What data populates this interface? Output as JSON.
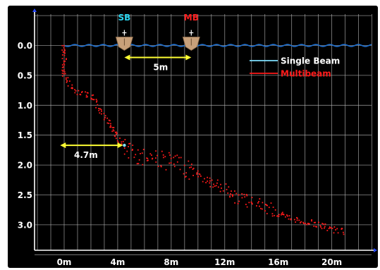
{
  "chart_data": {
    "type": "scatter",
    "x_ticks": [
      "0m",
      "4m",
      "8m",
      "12m",
      "16m",
      "20m"
    ],
    "y_ticks": [
      "0.0",
      "0.5",
      "1.0",
      "1.5",
      "2.0",
      "2.5",
      "3.0"
    ],
    "xlim": [
      -2,
      23
    ],
    "ylim": [
      3.4,
      -0.4
    ],
    "grid": true,
    "water_surface_color": "#1e6fd0",
    "legend": {
      "placement": "top-right",
      "entries": [
        {
          "label": "Single Beam",
          "color": "#7fe0ff"
        },
        {
          "label": "Multibeam",
          "color": "#ff1a1a"
        }
      ]
    },
    "boats": [
      {
        "label": "SB",
        "x": 4.5,
        "label_color": "#2ad6f0"
      },
      {
        "label": "MB",
        "x": 9.5,
        "label_color": "#ff2020"
      }
    ],
    "annotations": [
      {
        "text": "5m",
        "color": "#ffff33",
        "arrow_from": [
          4.5,
          0.2
        ],
        "arrow_to": [
          9.5,
          0.2
        ]
      },
      {
        "text": "4.7m",
        "color": "#ffff33",
        "arrow_from": [
          -0.3,
          1.67
        ],
        "arrow_to": [
          4.4,
          1.67
        ]
      }
    ],
    "series": [
      {
        "name": "Multibeam",
        "color": "#ff1a1a",
        "profile": [
          [
            0.0,
            0.0
          ],
          [
            0.0,
            0.5
          ],
          [
            0.5,
            0.7
          ],
          [
            1.2,
            0.78
          ],
          [
            2.0,
            0.85
          ],
          [
            2.5,
            1.0
          ],
          [
            3.0,
            1.15
          ],
          [
            3.5,
            1.35
          ],
          [
            4.0,
            1.55
          ],
          [
            4.5,
            1.7
          ],
          [
            5.0,
            1.82
          ],
          [
            6.0,
            1.85
          ],
          [
            7.0,
            1.88
          ],
          [
            8.0,
            1.95
          ],
          [
            9.0,
            2.05
          ],
          [
            9.5,
            2.1
          ],
          [
            10.0,
            2.15
          ],
          [
            11.0,
            2.3
          ],
          [
            12.0,
            2.4
          ],
          [
            13.0,
            2.55
          ],
          [
            14.0,
            2.62
          ],
          [
            15.0,
            2.7
          ],
          [
            16.0,
            2.82
          ],
          [
            17.0,
            2.9
          ],
          [
            18.0,
            2.95
          ],
          [
            19.0,
            3.0
          ],
          [
            20.0,
            3.08
          ],
          [
            21.0,
            3.12
          ]
        ]
      },
      {
        "name": "Single Beam",
        "color": "#7fe0ff",
        "points": [
          [
            4.5,
            1.67
          ]
        ]
      }
    ]
  }
}
